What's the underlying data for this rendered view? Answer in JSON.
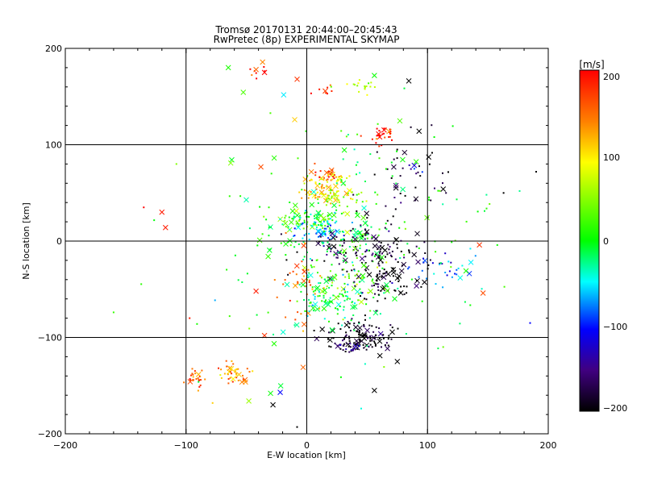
{
  "chart_data": {
    "type": "scatter",
    "title": "Tromsø 20170131 20:44:00–20:45:43",
    "subtitle": "RwPretec (8p) EXPERIMENTAL SKYMAP",
    "xlabel": "E-W location [km]",
    "ylabel": "N-S location [km]",
    "xlim": [
      -200,
      200
    ],
    "ylim": [
      -200,
      200
    ],
    "xticks": [
      "−200",
      "−100",
      "0",
      "100",
      "200"
    ],
    "yticks": [
      "−200",
      "−100",
      "0",
      "100",
      "200"
    ],
    "grid": true,
    "colorbar": {
      "label": "[m/s]",
      "min": -200,
      "max": 200,
      "ticks": [
        "200",
        "100",
        "0",
        "−100",
        "−200"
      ],
      "colors": [
        "#ff0000",
        "#ff8000",
        "#ffff00",
        "#00ff00",
        "#00ffff",
        "#0000ff",
        "#400080",
        "#000000"
      ]
    },
    "clusters": [
      {
        "x": -93,
        "y": -142,
        "sx": 4,
        "sy": 5,
        "v": 160,
        "n": 25
      },
      {
        "x": -60,
        "y": -138,
        "sx": 6,
        "sy": 6,
        "v": 145,
        "n": 40
      },
      {
        "x": -40,
        "y": 172,
        "sx": 6,
        "sy": 5,
        "v": 170,
        "n": 8
      },
      {
        "x": 45,
        "y": 160,
        "sx": 8,
        "sy": 4,
        "v": 65,
        "n": 18
      },
      {
        "x": 15,
        "y": 155,
        "sx": 6,
        "sy": 4,
        "v": 185,
        "n": 8
      },
      {
        "x": 62,
        "y": 110,
        "sx": 6,
        "sy": 5,
        "v": 195,
        "n": 30
      },
      {
        "x": 18,
        "y": 70,
        "sx": 6,
        "sy": 4,
        "v": 180,
        "n": 25
      },
      {
        "x": 25,
        "y": 65,
        "sx": 6,
        "sy": 4,
        "v": 95,
        "n": 15
      },
      {
        "x": 8,
        "y": 50,
        "sx": 8,
        "sy": 6,
        "v": 120,
        "n": 50
      },
      {
        "x": 25,
        "y": 45,
        "sx": 12,
        "sy": 5,
        "v": 75,
        "n": 40
      },
      {
        "x": 0,
        "y": 22,
        "sx": 12,
        "sy": 5,
        "v": 20,
        "n": 70
      },
      {
        "x": 15,
        "y": 15,
        "sx": 12,
        "sy": 8,
        "v": -60,
        "n": 60
      },
      {
        "x": 40,
        "y": 5,
        "sx": 15,
        "sy": 8,
        "v": -10,
        "n": 40
      },
      {
        "x": 50,
        "y": -10,
        "sx": 25,
        "sy": 12,
        "v": -180,
        "n": 120
      },
      {
        "x": 30,
        "y": -40,
        "sx": 18,
        "sy": 15,
        "v": 40,
        "n": 70
      },
      {
        "x": 30,
        "y": -60,
        "sx": 15,
        "sy": 12,
        "v": -20,
        "n": 50
      },
      {
        "x": 70,
        "y": -40,
        "sx": 15,
        "sy": 15,
        "v": -200,
        "n": 80
      },
      {
        "x": 45,
        "y": -100,
        "sx": 15,
        "sy": 8,
        "v": -200,
        "n": 120
      },
      {
        "x": 35,
        "y": -110,
        "sx": 4,
        "sy": 3,
        "v": -150,
        "n": 20
      },
      {
        "x": 110,
        "y": -30,
        "sx": 15,
        "sy": 10,
        "v": -80,
        "n": 30
      },
      {
        "x": -5,
        "y": -45,
        "sx": 10,
        "sy": 20,
        "v": 160,
        "n": 40
      },
      {
        "x": 10,
        "y": -60,
        "sx": 8,
        "sy": 10,
        "v": -5,
        "n": 30
      },
      {
        "x": 80,
        "y": 60,
        "sx": 20,
        "sy": 30,
        "v": -190,
        "n": 40
      },
      {
        "x": 90,
        "y": 75,
        "sx": 5,
        "sy": 4,
        "v": -140,
        "n": 10
      },
      {
        "x": 30,
        "y": 0,
        "sx": 60,
        "sy": 60,
        "v": 0,
        "n": 220
      }
    ],
    "crosses": [
      {
        "x": -65,
        "y": 180,
        "v": 10
      },
      {
        "x": -42,
        "y": 178,
        "v": 160
      },
      {
        "x": -35,
        "y": 175,
        "v": 200
      },
      {
        "x": -8,
        "y": 168,
        "v": 180
      },
      {
        "x": -10,
        "y": 126,
        "v": 120
      },
      {
        "x": 93,
        "y": 114,
        "v": -200
      },
      {
        "x": -63,
        "y": 81,
        "v": 50
      },
      {
        "x": -38,
        "y": 77,
        "v": 170
      },
      {
        "x": -120,
        "y": 30,
        "v": 190
      },
      {
        "x": -117,
        "y": 14,
        "v": 190
      },
      {
        "x": 113,
        "y": 54,
        "v": -200
      },
      {
        "x": 143,
        "y": -4,
        "v": 180
      },
      {
        "x": 146,
        "y": -54,
        "v": 170
      },
      {
        "x": -32,
        "y": -16,
        "v": 20
      },
      {
        "x": -42,
        "y": -52,
        "v": 190
      },
      {
        "x": -35,
        "y": -98,
        "v": 180
      },
      {
        "x": -48,
        "y": -166,
        "v": 60
      },
      {
        "x": -30,
        "y": -158,
        "v": 0
      },
      {
        "x": -22,
        "y": -157,
        "v": -100
      },
      {
        "x": -28,
        "y": -170,
        "v": -200
      },
      {
        "x": -3,
        "y": -131,
        "v": 160
      },
      {
        "x": 56,
        "y": -155,
        "v": -200
      },
      {
        "x": 10,
        "y": 10,
        "v": -60
      },
      {
        "x": 24,
        "y": 57,
        "v": 120
      },
      {
        "x": 33,
        "y": -87,
        "v": -200
      },
      {
        "x": 75,
        "y": -125,
        "v": -200
      }
    ],
    "scattered_dots": [
      {
        "x": -160,
        "y": -74,
        "v": 20
      },
      {
        "x": -108,
        "y": 80,
        "v": 50
      },
      {
        "x": -135,
        "y": 35,
        "v": 200
      },
      {
        "x": 185,
        "y": -85,
        "v": -100
      },
      {
        "x": 190,
        "y": 72,
        "v": -200
      },
      {
        "x": 163,
        "y": 50,
        "v": -200
      },
      {
        "x": 113,
        "y": -110,
        "v": 40
      },
      {
        "x": -97,
        "y": -80,
        "v": 190
      },
      {
        "x": -78,
        "y": -168,
        "v": 120
      },
      {
        "x": -8,
        "y": -193,
        "v": -200
      }
    ]
  }
}
